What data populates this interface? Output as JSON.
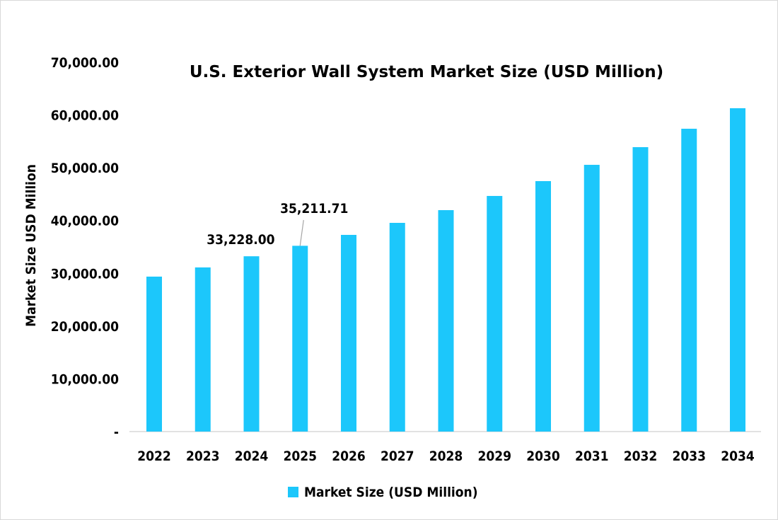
{
  "chart_data": {
    "type": "bar",
    "title": "U.S. Exterior Wall System Market Size (USD Million)",
    "xlabel": "",
    "ylabel": "Market Size USD Million",
    "categories": [
      "2022",
      "2023",
      "2024",
      "2025",
      "2026",
      "2027",
      "2028",
      "2029",
      "2030",
      "2031",
      "2032",
      "2033",
      "2034"
    ],
    "series": [
      {
        "name": "Market Size (USD Million)",
        "values": [
          29370,
          31110,
          33228.0,
          35211.71,
          37280,
          39560,
          41970,
          44660,
          47470,
          50560,
          53910,
          57400,
          61290
        ]
      }
    ],
    "data_labels": [
      {
        "category": "2024",
        "text": "33,228.00"
      },
      {
        "category": "2025",
        "text": "35,211.71"
      }
    ],
    "ylim": [
      0,
      70000
    ],
    "yticks": [
      0,
      10000,
      20000,
      30000,
      40000,
      50000,
      60000,
      70000
    ],
    "ytick_labels": [
      "-",
      "10,000.00",
      "20,000.00",
      "30,000.00",
      "40,000.00",
      "50,000.00",
      "60,000.00",
      "70,000.00"
    ],
    "grid": false,
    "legend_position": "bottom",
    "bar_color": "#1CC7FB"
  }
}
